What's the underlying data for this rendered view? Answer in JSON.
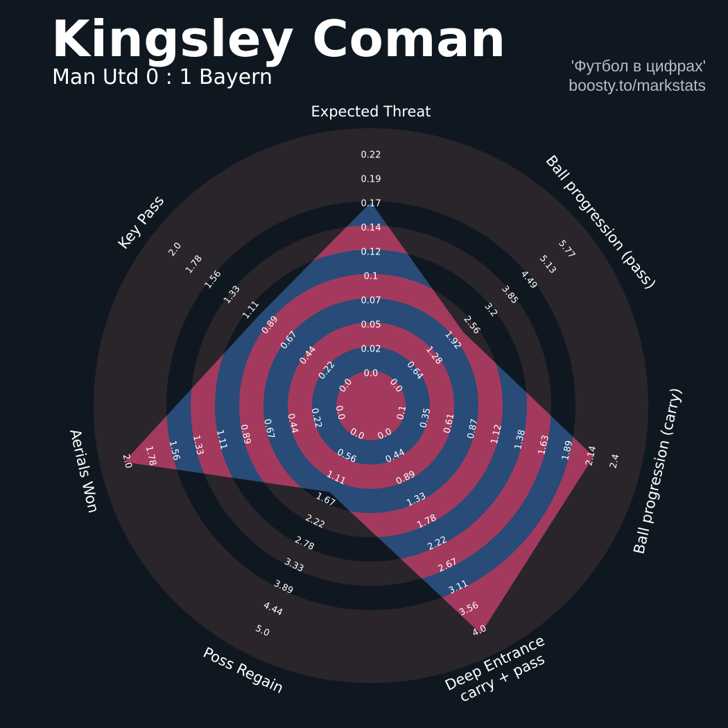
{
  "header": {
    "title": "Kingsley Coman",
    "subtitle": "Man Utd 0 : 1 Bayern",
    "credit_line1": "'Футбол в цифрах'",
    "credit_line2": "boosty.to/markstats"
  },
  "colors": {
    "background": "#0f1820",
    "ring_outer": "#2a252b",
    "ring_inner": "#a33a5e",
    "player_fill": "#284b78",
    "text": "#ffffff",
    "credit": "#b8bcc2"
  },
  "chart_data": {
    "type": "radar",
    "title": "Kingsley Coman",
    "params": [
      {
        "label": [
          "Expected Threat"
        ],
        "ticks": [
          "0.0",
          "0.02",
          "0.05",
          "0.07",
          "0.1",
          "0.12",
          "0.14",
          "0.17",
          "0.19",
          "0.22"
        ],
        "min": 0.0,
        "max": 0.22,
        "value": 0.17
      },
      {
        "label": [
          "Ball progression (pass)"
        ],
        "ticks": [
          "0.0",
          "0.64",
          "1.28",
          "1.92",
          "2.56",
          "3.2",
          "3.85",
          "4.49",
          "5.13",
          "5.77"
        ],
        "min": 0.0,
        "max": 5.77,
        "value": 2.2
      },
      {
        "label": [
          "Ball progression (carry)"
        ],
        "ticks": [
          "0.1",
          "0.35",
          "0.61",
          "0.87",
          "1.12",
          "1.38",
          "1.63",
          "1.89",
          "2.14",
          "2.4"
        ],
        "min": 0.1,
        "max": 2.4,
        "value": 2.14
      },
      {
        "label": [
          "Deep Entrance",
          "carry + pass"
        ],
        "ticks": [
          "0.0",
          "0.44",
          "0.89",
          "1.33",
          "1.78",
          "2.22",
          "2.67",
          "3.11",
          "3.56",
          "4.0"
        ],
        "min": 0.0,
        "max": 4.0,
        "value": 4.0
      },
      {
        "label": [
          "Poss Regain"
        ],
        "ticks": [
          "0.0",
          "0.56",
          "1.11",
          "1.67",
          "2.22",
          "2.78",
          "3.33",
          "3.89",
          "4.44",
          "5.0"
        ],
        "min": 0.0,
        "max": 5.0,
        "value": 1.4
      },
      {
        "label": [
          "Aerials Won"
        ],
        "ticks": [
          "0.0",
          "0.22",
          "0.44",
          "0.67",
          "0.89",
          "1.11",
          "1.33",
          "1.56",
          "1.78",
          "2.0"
        ],
        "min": 0.0,
        "max": 2.0,
        "value": 2.0
      },
      {
        "label": [
          "Key Pass"
        ],
        "ticks": [
          "0.0",
          "0.22",
          "0.44",
          "0.67",
          "0.89",
          "1.11",
          "1.33",
          "1.56",
          "1.78",
          "2.0"
        ],
        "min": 0.0,
        "max": 2.0,
        "value": 1.0
      }
    ],
    "rings": 10,
    "grid": true,
    "legend": "none"
  }
}
